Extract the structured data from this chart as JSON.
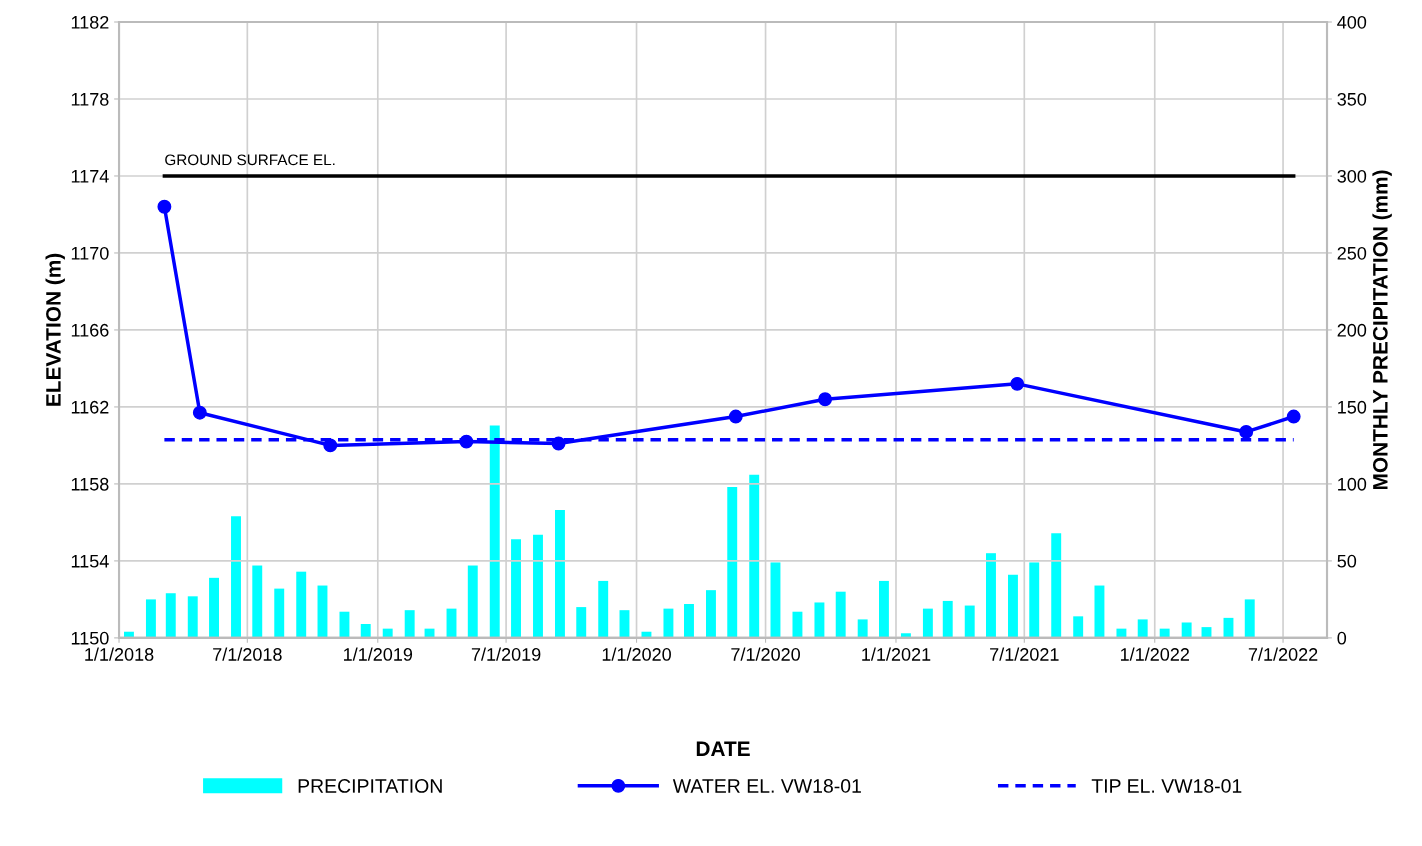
{
  "chart_data": {
    "type": "line",
    "xlabel": "DATE",
    "ylabel": "ELEVATION (m)",
    "y2label": "MONTHLY PRECIPITATION (mm)",
    "xlim": [
      "2018-01-01",
      "2022-09-01"
    ],
    "xticks": [
      {
        "value": "2018-01-01",
        "label": "1/1/2018"
      },
      {
        "value": "2018-07-01",
        "label": "7/1/2018"
      },
      {
        "value": "2019-01-01",
        "label": "1/1/2019"
      },
      {
        "value": "2019-07-01",
        "label": "7/1/2019"
      },
      {
        "value": "2020-01-01",
        "label": "1/1/2020"
      },
      {
        "value": "2020-07-01",
        "label": "7/1/2020"
      },
      {
        "value": "2021-01-01",
        "label": "1/1/2021"
      },
      {
        "value": "2021-07-01",
        "label": "7/1/2021"
      },
      {
        "value": "2022-01-01",
        "label": "1/1/2022"
      },
      {
        "value": "2022-07-01",
        "label": "7/1/2022"
      }
    ],
    "ylim": [
      1150,
      1182
    ],
    "yticks": [
      1150,
      1154,
      1158,
      1162,
      1166,
      1170,
      1174,
      1178,
      1182
    ],
    "y2lim": [
      0,
      400
    ],
    "y2ticks": [
      0,
      50,
      100,
      150,
      200,
      250,
      300,
      350,
      400
    ],
    "grid": true,
    "legend": "bottom",
    "annotations": [
      {
        "text": "GROUND SURFACE EL.",
        "x": "2018-03-06",
        "y": 1174
      }
    ],
    "series": [
      {
        "name": "PRECIPITATION",
        "type": "bar",
        "axis": "y2",
        "color": "#00ffff",
        "x": [
          "2018-01-15",
          "2018-02-15",
          "2018-03-15",
          "2018-04-15",
          "2018-05-15",
          "2018-06-15",
          "2018-07-15",
          "2018-08-15",
          "2018-09-15",
          "2018-10-15",
          "2018-11-15",
          "2018-12-15",
          "2019-01-15",
          "2019-02-15",
          "2019-03-15",
          "2019-04-15",
          "2019-05-15",
          "2019-06-15",
          "2019-07-15",
          "2019-08-15",
          "2019-09-15",
          "2019-10-15",
          "2019-11-15",
          "2019-12-15",
          "2020-01-15",
          "2020-02-15",
          "2020-03-15",
          "2020-04-15",
          "2020-05-15",
          "2020-06-15",
          "2020-07-15",
          "2020-08-15",
          "2020-09-15",
          "2020-10-15",
          "2020-11-15",
          "2020-12-15",
          "2021-01-15",
          "2021-02-15",
          "2021-03-15",
          "2021-04-15",
          "2021-05-15",
          "2021-06-15",
          "2021-07-15",
          "2021-08-15",
          "2021-09-15",
          "2021-10-15",
          "2021-11-15",
          "2021-12-15",
          "2022-01-15",
          "2022-02-15",
          "2022-03-15",
          "2022-04-15",
          "2022-05-15"
        ],
        "values": [
          4,
          25,
          29,
          27,
          39,
          79,
          47,
          32,
          43,
          34,
          17,
          9,
          6,
          18,
          6,
          19,
          47,
          138,
          64,
          67,
          83,
          20,
          37,
          18,
          4,
          19,
          22,
          31,
          98,
          106,
          49,
          17,
          23,
          30,
          12,
          37,
          3,
          19,
          24,
          21,
          55,
          41,
          49,
          68,
          14,
          34,
          6,
          12,
          6,
          10,
          7,
          13,
          25
        ]
      },
      {
        "name": "WATER EL. VW18-01",
        "color": "#0000ff",
        "marker": "circle",
        "line_style": "solid",
        "x": [
          "2018-03-06",
          "2018-04-25",
          "2018-10-26",
          "2019-05-06",
          "2019-09-13",
          "2020-05-20",
          "2020-09-23",
          "2021-06-21",
          "2022-05-10",
          "2022-07-16"
        ],
        "values": [
          1172.4,
          1161.7,
          1160.0,
          1160.2,
          1160.1,
          1161.5,
          1162.4,
          1163.2,
          1160.7,
          1161.5
        ]
      },
      {
        "name": "TIP EL. VW18-01",
        "color": "#0000ff",
        "marker": "none",
        "line_style": "dashed",
        "x": [
          "2018-03-06",
          "2022-07-16"
        ],
        "values": [
          1160.3,
          1160.3
        ]
      },
      {
        "color": "#000000",
        "marker": "none",
        "line_style": "solid",
        "x": [
          "2018-03-06",
          "2022-07-16"
        ],
        "values": [
          1174,
          1174
        ]
      }
    ]
  }
}
